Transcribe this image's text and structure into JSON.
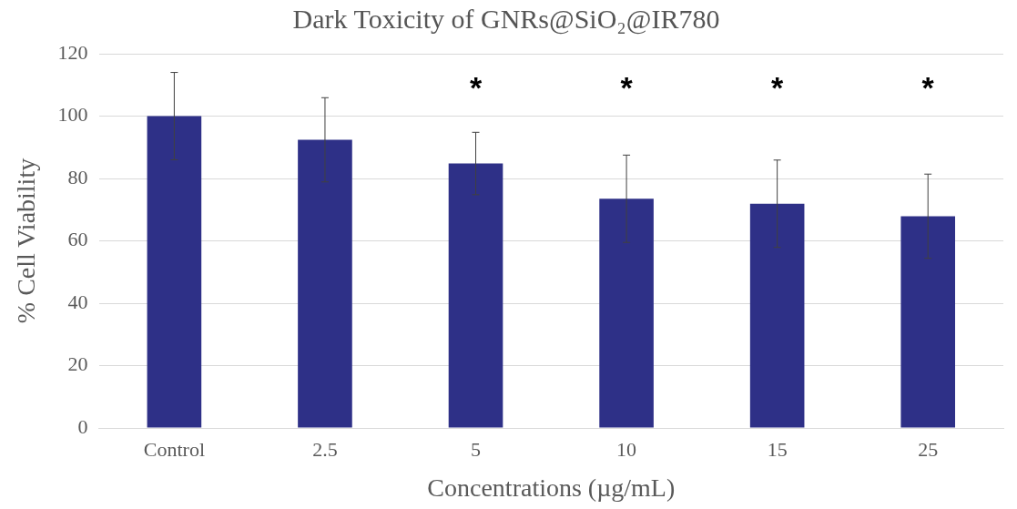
{
  "chart_data": {
    "type": "bar",
    "title": "Dark Toxicity of GNRs@SiO₂@IR780",
    "xlabel": "Concentrations (µg/mL)",
    "ylabel": "% Cell Viability",
    "categories": [
      "Control",
      "2.5",
      "5",
      "10",
      "15",
      "25"
    ],
    "values": [
      100,
      92.4,
      84.8,
      73.5,
      71.9,
      67.9
    ],
    "errors": [
      14,
      13.5,
      10,
      14,
      14,
      13.5
    ],
    "color": "#2e3087",
    "ylim": [
      0,
      120
    ],
    "yticks": [
      0,
      20,
      40,
      60,
      80,
      100,
      120
    ],
    "grid": "y",
    "annotations": [
      "*",
      "*",
      "*",
      "*"
    ]
  }
}
